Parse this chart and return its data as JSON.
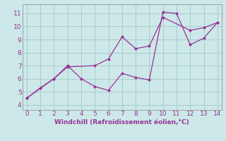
{
  "xlabel": "Windchill (Refroidissement éolien,°C)",
  "background_color": "#cce8e8",
  "grid_color": "#aacccc",
  "line_color": "#993399",
  "series1_x": [
    0,
    1,
    2,
    3,
    4,
    5,
    6,
    7,
    8,
    9,
    10,
    11,
    12,
    13,
    14
  ],
  "series1_y": [
    4.5,
    5.3,
    6.0,
    7.0,
    6.0,
    5.4,
    5.1,
    6.4,
    6.1,
    5.9,
    11.1,
    11.0,
    8.6,
    9.1,
    10.3
  ],
  "series2_x": [
    0,
    2,
    3,
    5,
    6,
    7,
    8,
    9,
    10,
    12,
    13,
    14
  ],
  "series2_y": [
    4.5,
    6.0,
    6.9,
    7.0,
    7.5,
    9.2,
    8.3,
    8.5,
    10.7,
    9.7,
    9.9,
    10.3
  ],
  "xlim": [
    -0.3,
    14.3
  ],
  "ylim": [
    3.6,
    11.7
  ],
  "yticks": [
    4,
    5,
    6,
    7,
    8,
    9,
    10,
    11
  ],
  "xticks": [
    0,
    1,
    2,
    3,
    4,
    5,
    6,
    7,
    8,
    9,
    10,
    11,
    12,
    13,
    14
  ],
  "xlabel_fontsize": 6.5,
  "tick_fontsize": 6.5
}
